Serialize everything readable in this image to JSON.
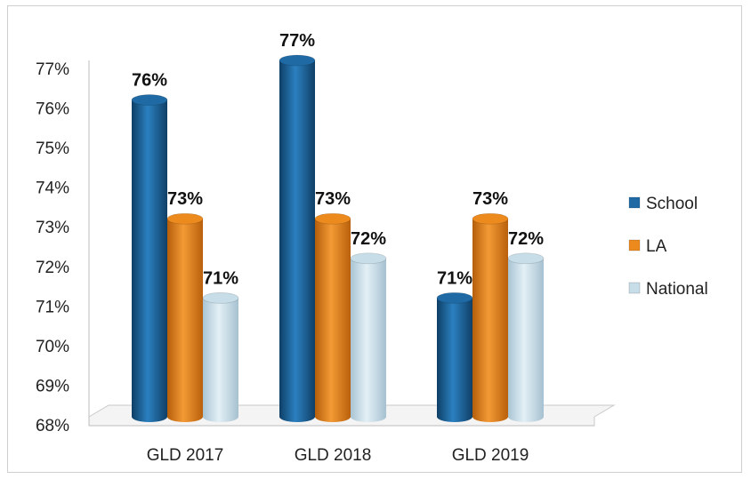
{
  "chart_data": {
    "type": "bar",
    "categories": [
      "GLD 2017",
      "GLD 2018",
      "GLD 2019"
    ],
    "series": [
      {
        "name": "School",
        "values": [
          76,
          77,
          71
        ],
        "labels": [
          "76%",
          "77%",
          "71%"
        ],
        "color": "#1f6aa5"
      },
      {
        "name": "LA",
        "values": [
          73,
          73,
          73
        ],
        "labels": [
          "73%",
          "73%",
          "73%"
        ],
        "color": "#ec8a1e"
      },
      {
        "name": "National",
        "values": [
          71,
          72,
          72
        ],
        "labels": [
          "71%",
          "72%",
          "72%"
        ],
        "color": "#c7dde8"
      }
    ],
    "yticks": [
      "68%",
      "69%",
      "70%",
      "71%",
      "72%",
      "73%",
      "74%",
      "75%",
      "76%",
      "77%"
    ],
    "ylim": [
      68,
      77
    ],
    "legend_position": "right",
    "grid": false,
    "style": "3d-cylinder"
  }
}
